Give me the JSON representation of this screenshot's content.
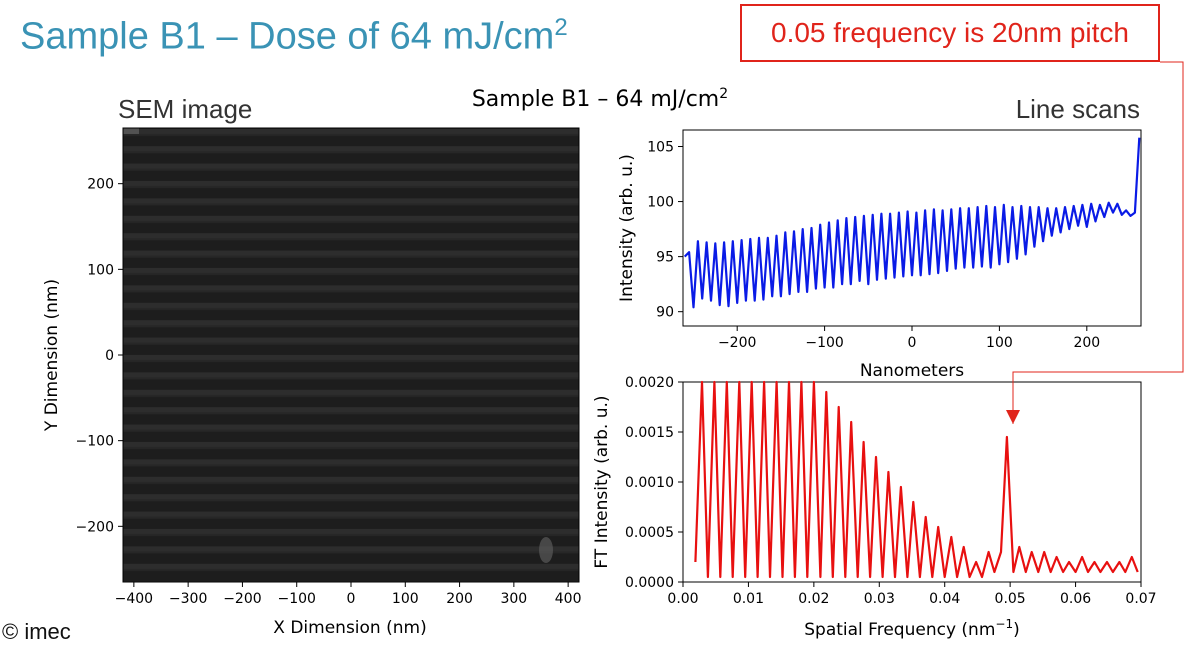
{
  "slide": {
    "title_main": "Sample B1 – Dose of 64 mJ/cm",
    "title_sup": "2",
    "callout": "0.05 frequency is 20nm pitch",
    "copyright": "© imec",
    "figure_title": "Sample B1  –  64 mJ/cm",
    "figure_title_sup": "2",
    "sem_label": "SEM image",
    "linescan_label": "Line scans"
  },
  "colors": {
    "title": "#3a93b5",
    "callout": "#e0241b",
    "line_scan": "#0a1be6",
    "ft": "#e81010",
    "sem_background": "#1d1d1d"
  },
  "chart_data": [
    {
      "type": "heatmap",
      "panel": "sem",
      "title": "SEM image",
      "xlabel": "X Dimension (nm)",
      "ylabel": "Y Dimension (nm)",
      "xlim": [
        -420,
        420
      ],
      "ylim": [
        -265,
        265
      ],
      "xticks": [
        -400,
        -300,
        -200,
        -100,
        0,
        100,
        200,
        300,
        400
      ],
      "yticks": [
        200,
        100,
        0,
        -100,
        -200
      ],
      "xtick_labels": [
        "−400",
        "−300",
        "−200",
        "−100",
        "0",
        "100",
        "200",
        "300",
        "400"
      ],
      "ytick_labels": [
        "200",
        "100",
        "0",
        "−100",
        "−200"
      ],
      "line_pitch_nm": 20
    },
    {
      "type": "line",
      "panel": "linescan",
      "xlabel": "Nanometers",
      "ylabel": "Intensity (arb. u.)",
      "xlim": [
        -262,
        262
      ],
      "ylim": [
        88.7,
        106.5
      ],
      "xticks": [
        -200,
        -100,
        0,
        100,
        200
      ],
      "xtick_labels": [
        "−200",
        "−100",
        "0",
        "100",
        "200"
      ],
      "yticks": [
        90,
        95,
        100,
        105
      ],
      "ytick_labels": [
        "90",
        "95",
        "100",
        "105"
      ],
      "x": [
        -260,
        -255,
        -250,
        -245,
        -240,
        -235,
        -230,
        -225,
        -220,
        -215,
        -210,
        -205,
        -200,
        -195,
        -190,
        -185,
        -180,
        -175,
        -170,
        -165,
        -160,
        -155,
        -150,
        -145,
        -140,
        -135,
        -130,
        -125,
        -120,
        -115,
        -110,
        -105,
        -100,
        -95,
        -90,
        -85,
        -80,
        -75,
        -70,
        -65,
        -60,
        -55,
        -50,
        -45,
        -40,
        -35,
        -30,
        -25,
        -20,
        -15,
        -10,
        -5,
        0,
        5,
        10,
        15,
        20,
        25,
        30,
        35,
        40,
        45,
        50,
        55,
        60,
        65,
        70,
        75,
        80,
        85,
        90,
        95,
        100,
        105,
        110,
        115,
        120,
        125,
        130,
        135,
        140,
        145,
        150,
        155,
        160,
        165,
        170,
        175,
        180,
        185,
        190,
        195,
        200,
        205,
        210,
        215,
        220,
        225,
        230,
        235,
        240,
        245,
        250,
        255,
        260
      ],
      "y": [
        95.0,
        95.4,
        90.4,
        96.4,
        91.2,
        96.3,
        91.0,
        96.2,
        90.6,
        96.3,
        90.5,
        96.4,
        90.8,
        96.5,
        91.0,
        96.6,
        91.0,
        96.7,
        91.1,
        96.7,
        91.4,
        96.9,
        91.4,
        97.2,
        91.6,
        97.3,
        91.8,
        97.5,
        91.8,
        97.6,
        92.1,
        97.9,
        92.2,
        98.1,
        92.2,
        98.3,
        92.5,
        98.5,
        92.5,
        98.6,
        92.8,
        98.7,
        92.5,
        98.8,
        92.9,
        98.9,
        93.0,
        98.9,
        93.1,
        99.0,
        93.2,
        99.1,
        93.3,
        99.0,
        93.3,
        99.2,
        93.4,
        99.3,
        93.5,
        99.2,
        93.7,
        99.3,
        93.9,
        99.4,
        94.0,
        99.4,
        94.0,
        99.5,
        94.1,
        99.6,
        94.0,
        99.5,
        94.3,
        99.7,
        94.5,
        99.5,
        94.8,
        99.6,
        95.2,
        99.5,
        95.9,
        99.5,
        96.4,
        99.4,
        96.9,
        99.4,
        97.2,
        99.5,
        97.5,
        99.6,
        97.8,
        99.7,
        97.7,
        99.8,
        98.2,
        99.7,
        98.6,
        99.9,
        99.0,
        99.8,
        98.8,
        99.2,
        98.7,
        99.0,
        105.8
      ]
    },
    {
      "type": "line",
      "panel": "fft",
      "xlabel": "Spatial Frequency (nm",
      "xlabel_sup": "−1",
      "xlabel_end": ")",
      "ylabel": "FT Intensity (arb. u.)",
      "xlim": [
        0.0,
        0.07
      ],
      "ylim": [
        0.0,
        0.002
      ],
      "xticks": [
        0.0,
        0.01,
        0.02,
        0.03,
        0.04,
        0.05,
        0.06,
        0.07
      ],
      "xtick_labels": [
        "0.00",
        "0.01",
        "0.02",
        "0.03",
        "0.04",
        "0.05",
        "0.06",
        "0.07"
      ],
      "yticks": [
        0.0,
        0.0005,
        0.001,
        0.0015,
        0.002
      ],
      "ytick_labels": [
        "0.0000",
        "0.0005",
        "0.0010",
        "0.0015",
        "0.0020"
      ],
      "x": [
        0.0019,
        0.0029,
        0.0038,
        0.0048,
        0.0057,
        0.0067,
        0.0076,
        0.0086,
        0.0095,
        0.0105,
        0.0114,
        0.0124,
        0.0133,
        0.0143,
        0.0152,
        0.0162,
        0.0171,
        0.0181,
        0.019,
        0.02,
        0.021,
        0.0219,
        0.0229,
        0.0238,
        0.0248,
        0.0257,
        0.0267,
        0.0276,
        0.0286,
        0.0295,
        0.0305,
        0.0314,
        0.0324,
        0.0333,
        0.0343,
        0.0352,
        0.0362,
        0.0371,
        0.0381,
        0.039,
        0.04,
        0.041,
        0.0419,
        0.0429,
        0.0438,
        0.0448,
        0.0457,
        0.0467,
        0.0476,
        0.0486,
        0.0495,
        0.0505,
        0.0514,
        0.0524,
        0.0533,
        0.0543,
        0.0552,
        0.0562,
        0.0571,
        0.0581,
        0.059,
        0.06,
        0.061,
        0.0619,
        0.0629,
        0.0638,
        0.0648,
        0.0657,
        0.0667,
        0.0676,
        0.0686,
        0.0695
      ],
      "y": [
        0.0002,
        0.002,
        5e-05,
        0.002,
        5e-05,
        0.002,
        5e-05,
        0.002,
        5e-05,
        0.002,
        5e-05,
        0.002,
        5e-05,
        0.002,
        5e-05,
        0.002,
        5e-05,
        0.002,
        5e-05,
        0.002,
        5e-05,
        0.0019,
        5e-05,
        0.00175,
        5e-05,
        0.0016,
        5e-05,
        0.0014,
        5e-05,
        0.00125,
        5e-05,
        0.0011,
        5e-05,
        0.00095,
        5e-05,
        0.0008,
        5e-05,
        0.00065,
        5e-05,
        0.00055,
        5e-05,
        0.00045,
        5e-05,
        0.00035,
        5e-05,
        0.0002,
        5e-05,
        0.0003,
        0.0001,
        0.0003,
        0.00145,
        0.0001,
        0.00035,
        0.0001,
        0.0003,
        0.0001,
        0.0003,
        0.0001,
        0.00025,
        0.0001,
        0.0002,
        0.0001,
        0.00025,
        0.0001,
        0.0002,
        0.0001,
        0.0002,
        0.0001,
        0.0002,
        0.0001,
        0.00025,
        0.0001
      ],
      "annotation": {
        "x": 0.0505,
        "text": "0.05 frequency is 20nm pitch"
      }
    }
  ]
}
